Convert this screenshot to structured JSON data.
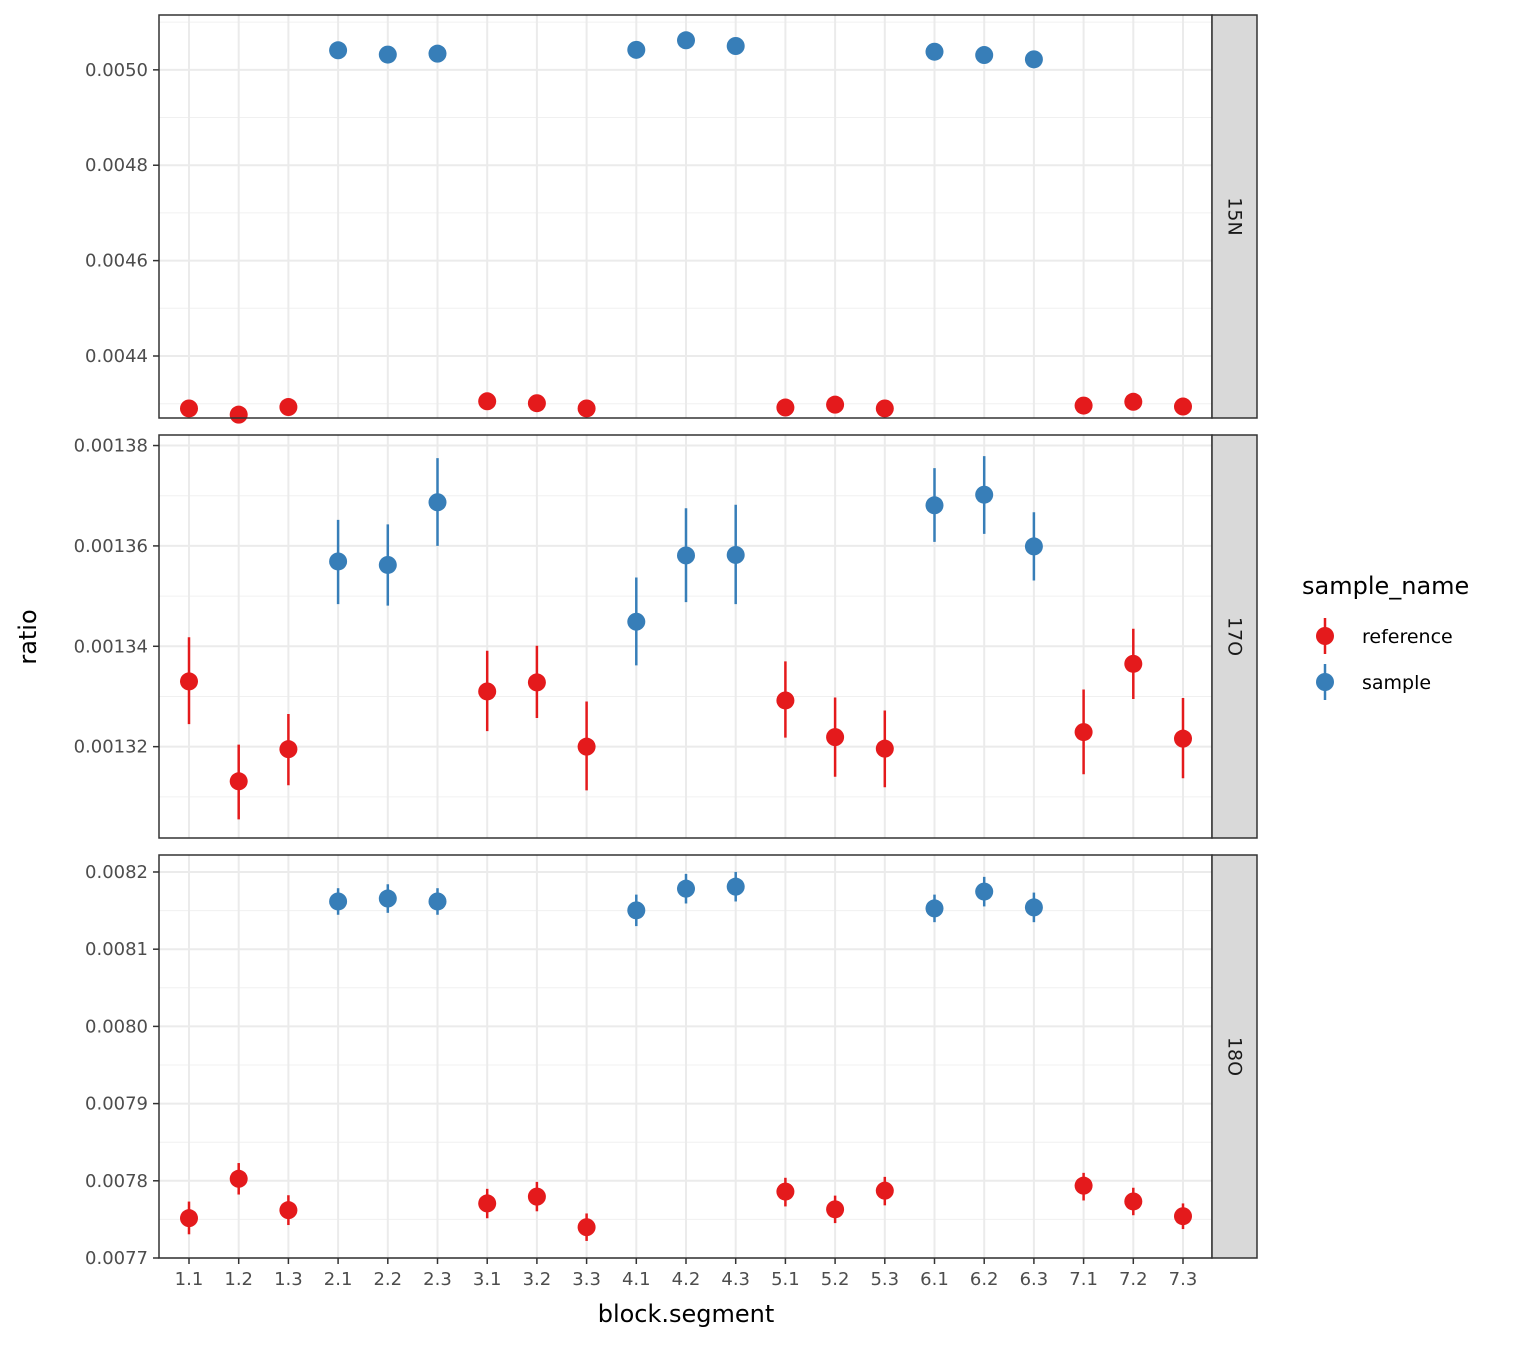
{
  "chart_data": {
    "type": "scatter",
    "subtype": "facet-grid point-range",
    "x_label": "block.segment",
    "y_label": "ratio",
    "categories": [
      "1.1",
      "1.2",
      "1.3",
      "2.1",
      "2.2",
      "2.3",
      "3.1",
      "3.2",
      "3.3",
      "4.1",
      "4.2",
      "4.3",
      "5.1",
      "5.2",
      "5.3",
      "6.1",
      "6.2",
      "6.3",
      "7.1",
      "7.2",
      "7.3"
    ],
    "grid": true,
    "legend": {
      "title": "sample_name",
      "placement": "right",
      "entries": [
        {
          "name": "reference",
          "color": "#E41A1C"
        },
        {
          "name": "sample",
          "color": "#377EB8"
        }
      ]
    },
    "facets": [
      {
        "label": "15N",
        "ylim": [
          0.00427,
          0.005115
        ],
        "y_ticks": [
          "0.0044",
          "0.0046",
          "0.0048",
          "0.0050"
        ],
        "y_tick_values": [
          0.0044,
          0.0046,
          0.0048,
          0.005
        ],
        "points": [
          {
            "x": "1.1",
            "series": "reference",
            "y": 0.00429,
            "ymin": null,
            "ymax": null
          },
          {
            "x": "1.2",
            "series": "reference",
            "y": 0.004277,
            "ymin": null,
            "ymax": null
          },
          {
            "x": "1.3",
            "series": "reference",
            "y": 0.004293,
            "ymin": null,
            "ymax": null
          },
          {
            "x": "2.1",
            "series": "sample",
            "y": 0.005041,
            "ymin": null,
            "ymax": null
          },
          {
            "x": "2.2",
            "series": "sample",
            "y": 0.005032,
            "ymin": null,
            "ymax": null
          },
          {
            "x": "2.3",
            "series": "sample",
            "y": 0.005034,
            "ymin": null,
            "ymax": null
          },
          {
            "x": "3.1",
            "series": "reference",
            "y": 0.004305,
            "ymin": null,
            "ymax": null
          },
          {
            "x": "3.2",
            "series": "reference",
            "y": 0.004301,
            "ymin": null,
            "ymax": null
          },
          {
            "x": "3.3",
            "series": "reference",
            "y": 0.00429,
            "ymin": null,
            "ymax": null
          },
          {
            "x": "4.1",
            "series": "sample",
            "y": 0.005042,
            "ymin": null,
            "ymax": null
          },
          {
            "x": "4.2",
            "series": "sample",
            "y": 0.005062,
            "ymin": null,
            "ymax": null
          },
          {
            "x": "4.3",
            "series": "sample",
            "y": 0.00505,
            "ymin": null,
            "ymax": null
          },
          {
            "x": "5.1",
            "series": "reference",
            "y": 0.004292,
            "ymin": null,
            "ymax": null
          },
          {
            "x": "5.2",
            "series": "reference",
            "y": 0.004298,
            "ymin": null,
            "ymax": null
          },
          {
            "x": "5.3",
            "series": "reference",
            "y": 0.00429,
            "ymin": null,
            "ymax": null
          },
          {
            "x": "6.1",
            "series": "sample",
            "y": 0.005038,
            "ymin": null,
            "ymax": null
          },
          {
            "x": "6.2",
            "series": "sample",
            "y": 0.005031,
            "ymin": null,
            "ymax": null
          },
          {
            "x": "6.3",
            "series": "sample",
            "y": 0.005022,
            "ymin": null,
            "ymax": null
          },
          {
            "x": "7.1",
            "series": "reference",
            "y": 0.004296,
            "ymin": null,
            "ymax": null
          },
          {
            "x": "7.2",
            "series": "reference",
            "y": 0.004304,
            "ymin": null,
            "ymax": null
          },
          {
            "x": "7.3",
            "series": "reference",
            "y": 0.004294,
            "ymin": null,
            "ymax": null
          }
        ]
      },
      {
        "label": "17O",
        "ylim": [
          0.0013018,
          0.0013821
        ],
        "y_ticks": [
          "0.00132",
          "0.00134",
          "0.00136",
          "0.00138"
        ],
        "y_tick_values": [
          0.00132,
          0.00134,
          0.00136,
          0.00138
        ],
        "points": [
          {
            "x": "1.1",
            "series": "reference",
            "y": 0.001333,
            "ymin": 0.0013245,
            "ymax": 0.0013418
          },
          {
            "x": "1.2",
            "series": "reference",
            "y": 0.0013131,
            "ymin": 0.0013055,
            "ymax": 0.0013204
          },
          {
            "x": "1.3",
            "series": "reference",
            "y": 0.0013195,
            "ymin": 0.0013123,
            "ymax": 0.0013265
          },
          {
            "x": "2.1",
            "series": "sample",
            "y": 0.0013569,
            "ymin": 0.0013484,
            "ymax": 0.0013652
          },
          {
            "x": "2.2",
            "series": "sample",
            "y": 0.0013562,
            "ymin": 0.0013481,
            "ymax": 0.0013643
          },
          {
            "x": "2.3",
            "series": "sample",
            "y": 0.0013687,
            "ymin": 0.00136,
            "ymax": 0.0013775
          },
          {
            "x": "3.1",
            "series": "reference",
            "y": 0.001331,
            "ymin": 0.0013231,
            "ymax": 0.0013391
          },
          {
            "x": "3.2",
            "series": "reference",
            "y": 0.0013328,
            "ymin": 0.0013257,
            "ymax": 0.0013401
          },
          {
            "x": "3.3",
            "series": "reference",
            "y": 0.00132,
            "ymin": 0.0013113,
            "ymax": 0.001329
          },
          {
            "x": "4.1",
            "series": "sample",
            "y": 0.0013449,
            "ymin": 0.0013362,
            "ymax": 0.0013537
          },
          {
            "x": "4.2",
            "series": "sample",
            "y": 0.0013581,
            "ymin": 0.0013488,
            "ymax": 0.0013675
          },
          {
            "x": "4.3",
            "series": "sample",
            "y": 0.0013582,
            "ymin": 0.0013484,
            "ymax": 0.0013682
          },
          {
            "x": "5.1",
            "series": "reference",
            "y": 0.0013292,
            "ymin": 0.0013218,
            "ymax": 0.001337
          },
          {
            "x": "5.2",
            "series": "reference",
            "y": 0.0013219,
            "ymin": 0.001314,
            "ymax": 0.0013298
          },
          {
            "x": "5.3",
            "series": "reference",
            "y": 0.0013196,
            "ymin": 0.0013119,
            "ymax": 0.0013272
          },
          {
            "x": "6.1",
            "series": "sample",
            "y": 0.0013681,
            "ymin": 0.0013608,
            "ymax": 0.0013755
          },
          {
            "x": "6.2",
            "series": "sample",
            "y": 0.0013702,
            "ymin": 0.0013624,
            "ymax": 0.0013779
          },
          {
            "x": "6.3",
            "series": "sample",
            "y": 0.0013599,
            "ymin": 0.0013531,
            "ymax": 0.0013667
          },
          {
            "x": "7.1",
            "series": "reference",
            "y": 0.0013229,
            "ymin": 0.0013145,
            "ymax": 0.0013314
          },
          {
            "x": "7.2",
            "series": "reference",
            "y": 0.0013365,
            "ymin": 0.0013295,
            "ymax": 0.0013435
          },
          {
            "x": "7.3",
            "series": "reference",
            "y": 0.0013216,
            "ymin": 0.0013137,
            "ymax": 0.0013297
          }
        ]
      },
      {
        "label": "18O",
        "ylim": [
          0.0077,
          0.008222
        ],
        "y_ticks": [
          "0.0077",
          "0.0078",
          "0.0079",
          "0.0080",
          "0.0081",
          "0.0082"
        ],
        "y_tick_values": [
          0.0077,
          0.0078,
          0.0079,
          0.008,
          0.0081,
          0.0082
        ],
        "points": [
          {
            "x": "1.1",
            "series": "reference",
            "y": 0.0077516,
            "ymin": 0.0077307,
            "ymax": 0.0077731
          },
          {
            "x": "1.2",
            "series": "reference",
            "y": 0.0078026,
            "ymin": 0.0077822,
            "ymax": 0.007823
          },
          {
            "x": "1.3",
            "series": "reference",
            "y": 0.007762,
            "ymin": 0.0077427,
            "ymax": 0.0077813
          },
          {
            "x": "2.1",
            "series": "sample",
            "y": 0.0081618,
            "ymin": 0.0081446,
            "ymax": 0.008179
          },
          {
            "x": "2.2",
            "series": "sample",
            "y": 0.0081656,
            "ymin": 0.0081471,
            "ymax": 0.0081841
          },
          {
            "x": "2.3",
            "series": "sample",
            "y": 0.0081618,
            "ymin": 0.0081446,
            "ymax": 0.008179
          },
          {
            "x": "3.1",
            "series": "reference",
            "y": 0.0077707,
            "ymin": 0.0077515,
            "ymax": 0.0077896
          },
          {
            "x": "3.2",
            "series": "reference",
            "y": 0.0077795,
            "ymin": 0.0077605,
            "ymax": 0.0077986
          },
          {
            "x": "3.3",
            "series": "reference",
            "y": 0.0077399,
            "ymin": 0.0077221,
            "ymax": 0.0077577
          },
          {
            "x": "4.1",
            "series": "sample",
            "y": 0.0081503,
            "ymin": 0.0081299,
            "ymax": 0.0081707
          },
          {
            "x": "4.2",
            "series": "sample",
            "y": 0.0081784,
            "ymin": 0.0081592,
            "ymax": 0.0081975
          },
          {
            "x": "4.3",
            "series": "sample",
            "y": 0.008181,
            "ymin": 0.0081618,
            "ymax": 0.0082001
          },
          {
            "x": "5.1",
            "series": "reference",
            "y": 0.007786,
            "ymin": 0.0077668,
            "ymax": 0.0078039
          },
          {
            "x": "5.2",
            "series": "reference",
            "y": 0.007763,
            "ymin": 0.0077452,
            "ymax": 0.0077808
          },
          {
            "x": "5.3",
            "series": "reference",
            "y": 0.0077872,
            "ymin": 0.0077682,
            "ymax": 0.0078051
          },
          {
            "x": "6.1",
            "series": "sample",
            "y": 0.0081528,
            "ymin": 0.008135,
            "ymax": 0.0081707
          },
          {
            "x": "6.2",
            "series": "sample",
            "y": 0.0081746,
            "ymin": 0.0081554,
            "ymax": 0.0081937
          },
          {
            "x": "6.3",
            "series": "sample",
            "y": 0.0081541,
            "ymin": 0.008135,
            "ymax": 0.0081733
          },
          {
            "x": "7.1",
            "series": "reference",
            "y": 0.0077937,
            "ymin": 0.0077745,
            "ymax": 0.0078103
          },
          {
            "x": "7.2",
            "series": "reference",
            "y": 0.0077732,
            "ymin": 0.0077554,
            "ymax": 0.007791
          },
          {
            "x": "7.3",
            "series": "reference",
            "y": 0.0077541,
            "ymin": 0.0077375,
            "ymax": 0.0077707
          }
        ]
      }
    ]
  }
}
